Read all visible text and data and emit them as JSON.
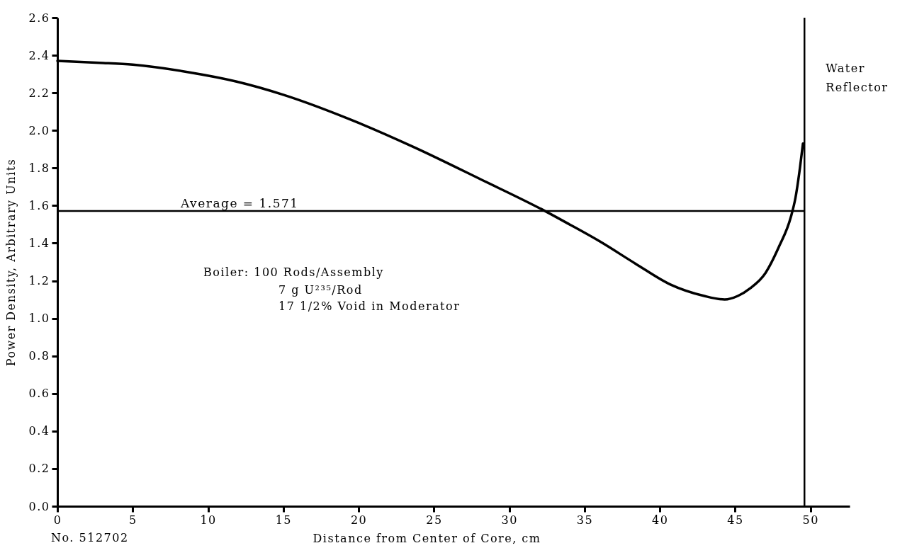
{
  "chart_data": {
    "type": "line",
    "xlabel": "Distance from Center of Core, cm",
    "ylabel": "Power Density, Arbitrary Units",
    "annotations": [
      "Boiler: 100 Rods/Assembly",
      "7 g U²³⁵/Rod",
      "17 1/2% Void in Moderator",
      "No. 512702"
    ],
    "x": [
      0,
      2.8,
      5,
      8.7,
      11.9,
      15,
      19.4,
      23.7,
      28.1,
      32.4,
      34,
      36,
      38.4,
      40.7,
      42.9,
      44.3,
      45.2,
      46,
      47,
      47.9,
      48.7,
      49,
      49.3,
      49.5
    ],
    "series": [
      {
        "color": "#000000",
        "values": [
          2.37,
          2.36,
          2.35,
          2.31,
          2.26,
          2.19,
          2.06,
          1.91,
          1.74,
          1.57,
          1.5,
          1.41,
          1.29,
          1.18,
          1.12,
          1.1,
          1.12,
          1.16,
          1.24,
          1.38,
          1.54,
          1.64,
          1.8,
          1.93
        ]
      }
    ],
    "xlim": [
      0,
      52.6
    ],
    "xticks": [
      0,
      5,
      10,
      15,
      20,
      25,
      30,
      35,
      40,
      45,
      50
    ],
    "ylim": [
      0,
      2.6
    ],
    "yticks": [
      {
        "value": 0,
        "label": "0.0"
      },
      0.2,
      0.4,
      0.6,
      0.8,
      {
        "value": 1,
        "label": "1.0"
      },
      1.2,
      1.4,
      1.6,
      1.8,
      {
        "value": 2,
        "label": "2.0"
      },
      2.2,
      2.4,
      2.6
    ],
    "ref_lines": [
      {
        "axis": "y",
        "value": 1.571,
        "label": "Average = 1.571",
        "color": "#000000"
      },
      {
        "axis": "x",
        "value": 49.6,
        "label": "Water Reflector",
        "color": "#000000"
      }
    ]
  }
}
